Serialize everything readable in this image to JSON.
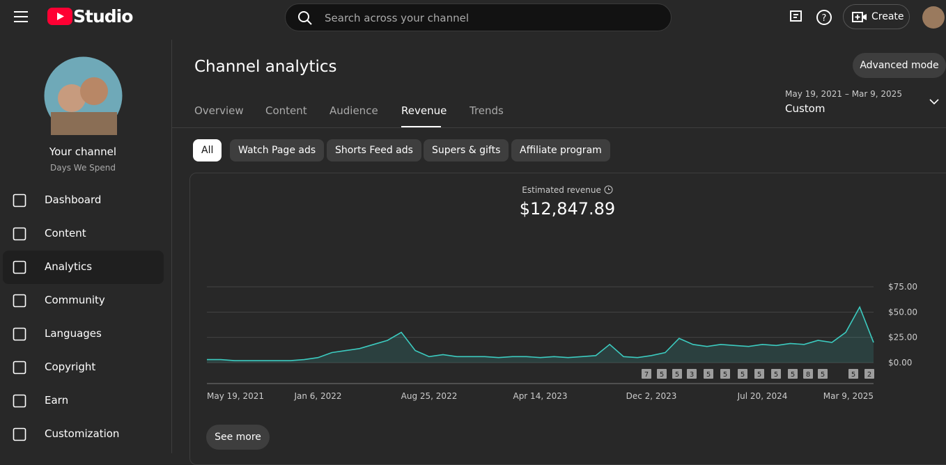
{
  "header": {
    "logo": "Studio",
    "search_placeholder": "Search across your channel",
    "create": "Create"
  },
  "sidebar": {
    "channel_title": "Your channel",
    "channel_name": "Days We Spend",
    "nav": [
      "Dashboard",
      "Content",
      "Analytics",
      "Community",
      "Languages",
      "Copyright",
      "Earn",
      "Customization"
    ]
  },
  "main": {
    "title": "Channel analytics",
    "advanced_mode": "Advanced mode",
    "tabs": [
      "Overview",
      "Content",
      "Audience",
      "Revenue",
      "Trends"
    ],
    "date_range": "May 19, 2021 – Mar 9, 2025",
    "date_label": "Custom",
    "filters": [
      "All",
      "Watch Page ads",
      "Shorts Feed ads",
      "Supers & gifts",
      "Affiliate program"
    ],
    "metric_label": "Estimated revenue",
    "metric_value": "$12,847.89",
    "see_more": "See more"
  },
  "chart_data": {
    "type": "area",
    "color": "#3ccbc0",
    "categories": [
      "May 19, 2021",
      null,
      null,
      null,
      null,
      null,
      null,
      null,
      "Jan 6, 2022",
      null,
      null,
      null,
      null,
      null,
      null,
      null,
      "Aug 25, 2022",
      null,
      null,
      null,
      null,
      null,
      null,
      null,
      "Apr 14, 2023",
      null,
      null,
      null,
      null,
      null,
      null,
      null,
      "Dec 2, 2023",
      null,
      null,
      null,
      null,
      null,
      null,
      null,
      "Jul 20, 2024",
      null,
      null,
      null,
      null,
      null,
      null,
      null,
      "Mar 9, 2025"
    ],
    "values": [
      3,
      3,
      2,
      2,
      2,
      2,
      2,
      3,
      5,
      10,
      12,
      14,
      18,
      22,
      30,
      12,
      6,
      8,
      6,
      6,
      6,
      5,
      6,
      6,
      5,
      6,
      5,
      6,
      7,
      18,
      6,
      5,
      7,
      10,
      24,
      18,
      16,
      18,
      17,
      16,
      18,
      17,
      19,
      18,
      22,
      20,
      30,
      55,
      20
    ],
    "ylim": [
      0,
      75
    ],
    "yticks": [
      {
        "value": 0,
        "label": "$0.00"
      },
      {
        "value": 25,
        "label": "$25.00"
      },
      {
        "value": 50,
        "label": "$50.00"
      },
      {
        "value": 75,
        "label": "$75.00"
      }
    ],
    "grid": true,
    "markers": [
      7,
      5,
      5,
      3,
      5,
      5,
      5,
      5,
      5,
      5,
      8,
      5,
      5,
      2
    ]
  }
}
